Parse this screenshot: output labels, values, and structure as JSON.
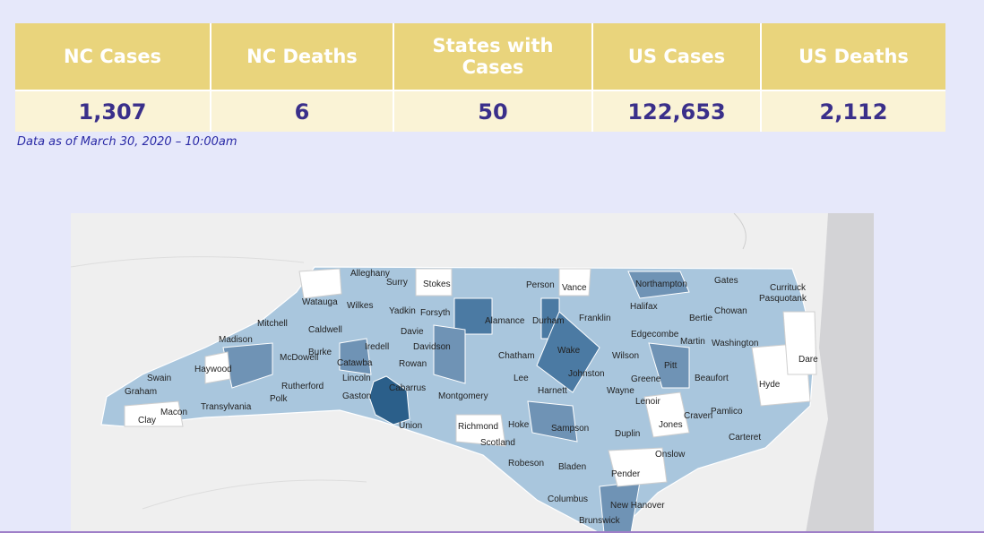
{
  "summary_table": {
    "headers": [
      "NC Cases",
      "NC Deaths",
      "States with Cases",
      "US Cases",
      "US Deaths"
    ],
    "values": [
      "1,307",
      "6",
      "50",
      "122,653",
      "2,112"
    ]
  },
  "data_note": "Data as of March 30, 2020 – 10:00am",
  "map": {
    "county_labels": [
      "Alleghany",
      "Surry",
      "Stokes",
      "Person",
      "Vance",
      "Northampton",
      "Gates",
      "Currituck",
      "Watauga",
      "Wilkes",
      "Yadkin",
      "Forsyth",
      "Alamance",
      "Durham",
      "Franklin",
      "Halifax",
      "Bertie",
      "Chowan",
      "Pasquotank",
      "Mitchell",
      "Madison",
      "Caldwell",
      "Davie",
      "Edgecombe",
      "Martin",
      "Washington",
      "Burke",
      "Iredell",
      "Davidson",
      "Wake",
      "Wilson",
      "Dare",
      "McDowell",
      "Catawba",
      "Rowan",
      "Chatham",
      "Pitt",
      "Swain",
      "Haywood",
      "Lincoln",
      "Lee",
      "Johnston",
      "Beaufort",
      "Graham",
      "Rutherford",
      "Cabarrus",
      "Greene",
      "Hyde",
      "Polk",
      "Gaston",
      "Montgomery",
      "Harnett",
      "Wayne",
      "Lenoir",
      "Transylvania",
      "Macon",
      "Clay",
      "Craven",
      "Pamlico",
      "Jones",
      "Union",
      "Richmond",
      "Hoke",
      "Sampson",
      "Duplin",
      "Carteret",
      "Scotland",
      "Onslow",
      "Robeson",
      "Bladen",
      "Pender",
      "Columbus",
      "New Hanover",
      "Brunswick"
    ]
  }
}
